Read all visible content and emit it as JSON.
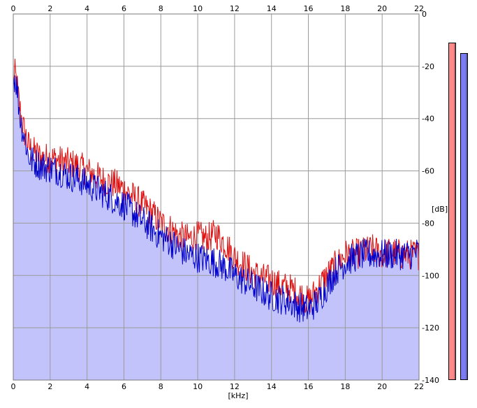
{
  "chart_data": {
    "type": "area",
    "x_axis": {
      "unit_label": "[kHz]",
      "range": [
        0,
        22
      ],
      "ticks": [
        "0",
        "2",
        "4",
        "6",
        "8",
        "10",
        "12",
        "14",
        "16",
        "18",
        "20",
        "22"
      ]
    },
    "y_axis": {
      "unit_label": "[dB]",
      "range": [
        -140,
        0
      ],
      "ticks": [
        "0",
        "-20",
        "-40",
        "-60",
        "-80",
        "-100",
        "-120",
        "-140"
      ]
    },
    "grid": true,
    "colors": {
      "red_channel": "#e01010",
      "blue_channel": "#0000cc",
      "fill": "#c3c3fb",
      "grid": "#9a9a9a",
      "meter_left": "#ff8a8a",
      "meter_right": "#7c7cf2"
    },
    "series": [
      {
        "color": "red",
        "x": [
          0,
          0.1,
          0.2,
          0.3,
          0.4,
          0.5,
          0.6,
          0.7,
          0.8,
          1,
          1.5,
          2,
          2.5,
          3,
          3.5,
          4,
          4.5,
          5,
          5.5,
          6,
          6.5,
          7,
          7.5,
          8,
          8.5,
          9,
          9.5,
          10,
          10.5,
          11,
          11.5,
          12,
          12.5,
          13,
          13.5,
          14,
          14.5,
          15,
          15.5,
          16,
          16.5,
          17,
          17.5,
          18,
          18.5,
          19,
          19.5,
          20,
          20.5,
          21,
          21.5,
          22
        ],
        "y": [
          -25,
          -23,
          -27,
          -33,
          -38,
          -42,
          -45,
          -47,
          -50,
          -52,
          -55,
          -55,
          -56,
          -57,
          -58,
          -60,
          -62,
          -64,
          -65,
          -67,
          -70,
          -73,
          -76,
          -80,
          -82,
          -85,
          -86,
          -85,
          -86,
          -84,
          -88,
          -93,
          -96,
          -99,
          -101,
          -102,
          -104,
          -105,
          -107,
          -110,
          -105,
          -100,
          -96,
          -92,
          -92,
          -91,
          -90,
          -92,
          -91,
          -92,
          -92,
          -92
        ]
      },
      {
        "color": "blue",
        "x": [
          0,
          0.1,
          0.2,
          0.3,
          0.4,
          0.5,
          0.6,
          0.7,
          0.8,
          1,
          1.5,
          2,
          2.5,
          3,
          3.5,
          4,
          4.5,
          5,
          5.5,
          6,
          6.5,
          7,
          7.5,
          8,
          8.5,
          9,
          9.5,
          10,
          10.5,
          11,
          11.5,
          12,
          12.5,
          13,
          13.5,
          14,
          14.5,
          15,
          15.5,
          16,
          16.5,
          17,
          17.5,
          18,
          18.5,
          19,
          19.5,
          20,
          20.5,
          21,
          21.5,
          22
        ],
        "y": [
          -25,
          -24,
          -28,
          -35,
          -41,
          -44,
          -47,
          -50,
          -54,
          -56,
          -58,
          -59,
          -60,
          -62,
          -63,
          -65,
          -67,
          -69,
          -71,
          -73,
          -76,
          -79,
          -82,
          -85,
          -87,
          -90,
          -92,
          -93,
          -94,
          -95,
          -97,
          -100,
          -102,
          -104,
          -106,
          -108,
          -109,
          -110,
          -112,
          -113,
          -110,
          -104,
          -98,
          -95,
          -93,
          -92,
          -92,
          -92,
          -92,
          -92,
          -92,
          -91
        ]
      }
    ],
    "level_meters": {
      "left": {
        "color": "red",
        "level_db": -11
      },
      "right": {
        "color": "blue",
        "level_db": -15
      }
    }
  }
}
